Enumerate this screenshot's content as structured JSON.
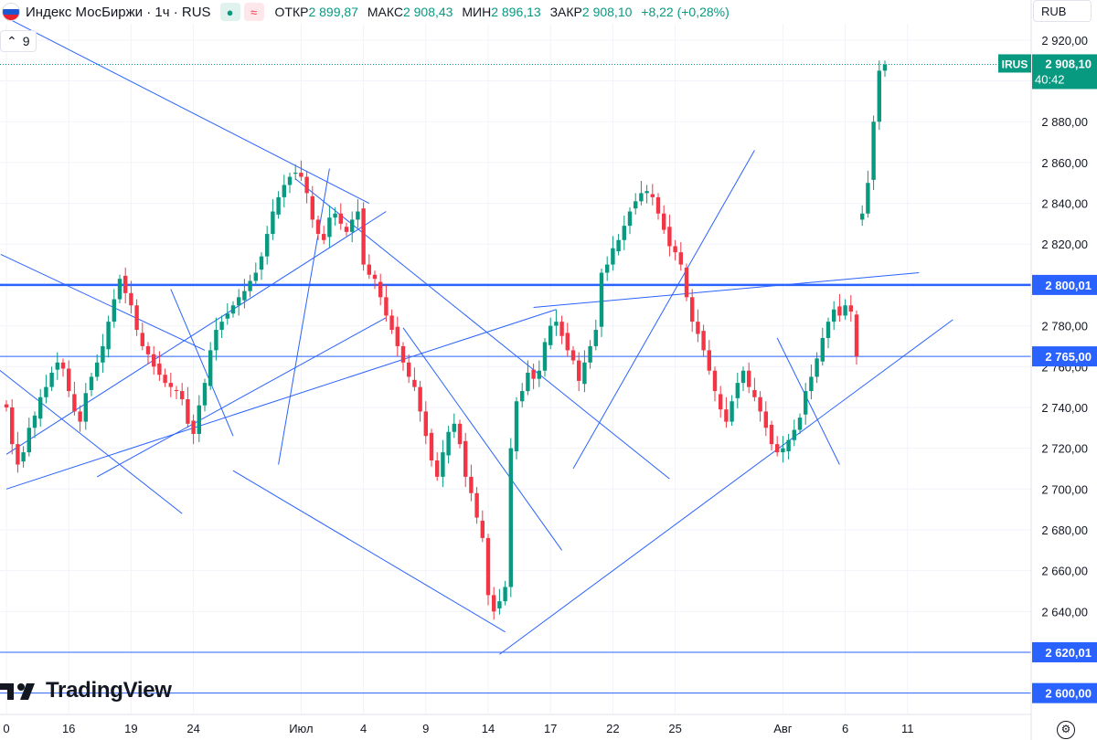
{
  "legend": {
    "symbol": "Индекс МосБиржи · 1ч · RUS",
    "open_label": "ОТКР",
    "open": "2 899,87",
    "high_label": "МАКС",
    "high": "2 908,43",
    "low_label": "МИН",
    "low": "2 896,13",
    "close_label": "ЗАКР",
    "close": "2 908,10",
    "change": "+8,22 (+0,28%)",
    "badge_1": "●",
    "badge_2": "≈"
  },
  "indicator": {
    "chevron": "⌃",
    "value": "9"
  },
  "currency": "RUB",
  "logo_text": "TradingView",
  "price_tag": {
    "ticker": "IRUS",
    "price": "2 908,10",
    "countdown": "40:42"
  },
  "colors": {
    "up": "#089981",
    "down": "#f23645",
    "line": "#2962ff",
    "accent": "#2962ff"
  },
  "chart_data": {
    "type": "candlestick",
    "ylim": [
      2590,
      2928
    ],
    "y_ticks": [
      "2 600,00",
      "2 620,00",
      "2 640,00",
      "2 660,00",
      "2 680,00",
      "2 700,00",
      "2 720,00",
      "2 740,00",
      "2 760,00",
      "2 780,00",
      "2 800,00",
      "2 820,00",
      "2 840,00",
      "2 860,00",
      "2 880,00",
      "2 900,00",
      "2 920,00"
    ],
    "y_tick_values": [
      2600,
      2620,
      2640,
      2660,
      2680,
      2700,
      2720,
      2740,
      2760,
      2780,
      2800,
      2820,
      2840,
      2860,
      2880,
      2900,
      2920
    ],
    "x_ticks": [
      {
        "label": "0",
        "bar": 0
      },
      {
        "label": "16",
        "bar": 11
      },
      {
        "label": "19",
        "bar": 22
      },
      {
        "label": "24",
        "bar": 33
      },
      {
        "label": "Июл",
        "bar": 52
      },
      {
        "label": "4",
        "bar": 63
      },
      {
        "label": "9",
        "bar": 74
      },
      {
        "label": "14",
        "bar": 85
      },
      {
        "label": "17",
        "bar": 96
      },
      {
        "label": "22",
        "bar": 107
      },
      {
        "label": "25",
        "bar": 118
      },
      {
        "label": "Авг",
        "bar": 137
      },
      {
        "label": "6",
        "bar": 148
      },
      {
        "label": "11",
        "bar": 159
      }
    ],
    "bar_range": [
      0,
      180
    ],
    "horizontal_levels": [
      {
        "value": 2800.01,
        "label": "2 800,01",
        "bold": true
      },
      {
        "value": 2765.0,
        "label": "2 765,00",
        "bold": false
      },
      {
        "value": 2620.01,
        "label": "2 620,01",
        "bold": false
      },
      {
        "value": 2600.0,
        "label": "2 600,00",
        "bold": false
      }
    ],
    "current_price": 2908.1,
    "closes": [
      2740,
      2722,
      2712,
      2718,
      2730,
      2736,
      2745,
      2750,
      2757,
      2762,
      2759,
      2748,
      2738,
      2733,
      2747,
      2755,
      2762,
      2770,
      2782,
      2793,
      2803,
      2796,
      2790,
      2778,
      2770,
      2766,
      2760,
      2756,
      2752,
      2750,
      2748,
      2744,
      2732,
      2727,
      2741,
      2752,
      2768,
      2778,
      2782,
      2786,
      2790,
      2794,
      2797,
      2802,
      2806,
      2814,
      2825,
      2836,
      2843,
      2849,
      2853,
      2855,
      2853,
      2845,
      2832,
      2825,
      2822,
      2833,
      2835,
      2830,
      2826,
      2832,
      2836,
      2810,
      2805,
      2803,
      2794,
      2785,
      2778,
      2770,
      2762,
      2755,
      2750,
      2738,
      2726,
      2714,
      2706,
      2718,
      2728,
      2732,
      2722,
      2706,
      2698,
      2686,
      2676,
      2648,
      2640,
      2645,
      2652,
      2720,
      2743,
      2748,
      2757,
      2754,
      2758,
      2772,
      2780,
      2782,
      2775,
      2768,
      2763,
      2753,
      2762,
      2770,
      2778,
      2806,
      2810,
      2818,
      2822,
      2829,
      2836,
      2841,
      2845,
      2846,
      2843,
      2835,
      2827,
      2819,
      2816,
      2810,
      2794,
      2782,
      2776,
      2768,
      2758,
      2748,
      2739,
      2733,
      2743,
      2752,
      2758,
      2750,
      2745,
      2738,
      2730,
      2722,
      2718,
      2720,
      2724,
      2729,
      2735,
      2748,
      2755,
      2764,
      2774,
      2782,
      2788,
      2785,
      2790,
      2787,
      2765,
      2835,
      2850,
      2880,
      2905,
      2908
    ],
    "trendlines": [
      {
        "from": [
          0,
          2931
        ],
        "to": [
          64,
          2840
        ]
      },
      {
        "from": [
          51,
          2852
        ],
        "to": [
          117,
          2705
        ]
      },
      {
        "from": [
          0,
          2717
        ],
        "to": [
          67,
          2836
        ]
      },
      {
        "from": [
          0,
          2700
        ],
        "to": [
          97,
          2788
        ]
      },
      {
        "from": [
          16,
          2706
        ],
        "to": [
          67,
          2784
        ]
      },
      {
        "from": [
          -1,
          2815
        ],
        "to": [
          35,
          2768
        ]
      },
      {
        "from": [
          87,
          2619
        ],
        "to": [
          167,
          2783
        ]
      },
      {
        "from": [
          93,
          2789
        ],
        "to": [
          161,
          2806
        ]
      },
      {
        "from": [
          40,
          2709
        ],
        "to": [
          88,
          2630
        ]
      },
      {
        "from": [
          -2,
          2760
        ],
        "to": [
          31,
          2688
        ]
      },
      {
        "from": [
          48,
          2712
        ],
        "to": [
          57,
          2857
        ]
      },
      {
        "from": [
          100,
          2710
        ],
        "to": [
          132,
          2866
        ]
      },
      {
        "from": [
          70,
          2779
        ],
        "to": [
          98,
          2670
        ]
      },
      {
        "from": [
          136,
          2774
        ],
        "to": [
          147,
          2712
        ]
      },
      {
        "from": [
          29,
          2798
        ],
        "to": [
          40,
          2726
        ]
      }
    ]
  }
}
